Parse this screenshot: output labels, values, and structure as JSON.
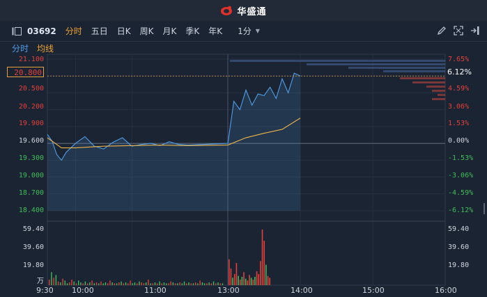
{
  "app": {
    "brand": "华盛通"
  },
  "toolbar": {
    "code": "03692",
    "tabs": [
      "分时",
      "五日",
      "日K",
      "周K",
      "月K",
      "季K",
      "年K"
    ],
    "active_tab": "分时",
    "interval": "1分"
  },
  "subtabs": {
    "tick": "分时",
    "avg": "均线"
  },
  "price_axis": {
    "left": [
      "21.100",
      "20.800",
      "20.500",
      "20.200",
      "19.900",
      "19.600",
      "19.300",
      "19.000",
      "18.700",
      "18.400"
    ],
    "right": [
      "7.65%",
      "6.12%",
      "4.59%",
      "3.06%",
      "1.53%",
      "0.00%",
      "-1.53%",
      "-3.06%",
      "-4.59%",
      "-6.12%"
    ],
    "current_price": "20.800",
    "current_pct": "6.12%"
  },
  "volume_axis": {
    "left": [
      "59.40",
      "39.60",
      "19.80",
      "万"
    ],
    "right": [
      "59.40",
      "39.60",
      "19.80"
    ]
  },
  "time_axis": [
    "9:30",
    "10:00",
    "11:00",
    "13:00",
    "14:00",
    "15:00",
    "16:00"
  ],
  "colors": {
    "background": "#1b2433",
    "price_line": "#4f9ee8",
    "avg_line": "#f0b44a",
    "up": "#e2403a",
    "down": "#3fbe58",
    "accent": "#f0a431"
  },
  "chart_data": {
    "type": "line",
    "ylim": [
      18.4,
      21.1
    ],
    "prev_close": 19.6,
    "series": [
      {
        "name": "分时",
        "x": [
          "9:30",
          "9:35",
          "9:40",
          "9:45",
          "9:50",
          "9:55",
          "10:00",
          "10:10",
          "10:20",
          "10:30",
          "10:40",
          "10:50",
          "11:00",
          "11:10",
          "11:20",
          "11:30",
          "11:40",
          "11:50",
          "12:00",
          "13:00",
          "13:05",
          "13:10",
          "13:15",
          "13:20",
          "13:25",
          "13:30",
          "13:35",
          "13:40",
          "13:45",
          "13:50",
          "13:55",
          "14:00"
        ],
        "values": [
          19.76,
          19.64,
          19.4,
          19.3,
          19.44,
          19.52,
          19.6,
          19.72,
          19.55,
          19.5,
          19.62,
          19.7,
          19.55,
          19.58,
          19.6,
          19.56,
          19.63,
          19.58,
          19.57,
          19.6,
          20.35,
          20.2,
          20.55,
          20.28,
          20.48,
          20.45,
          20.6,
          20.4,
          20.75,
          20.5,
          20.85,
          20.8
        ]
      },
      {
        "name": "均线",
        "x": [
          "9:30",
          "9:45",
          "10:00",
          "10:30",
          "11:00",
          "11:30",
          "12:00",
          "13:00",
          "13:15",
          "13:30",
          "13:45",
          "14:00"
        ],
        "values": [
          19.7,
          19.52,
          19.52,
          19.55,
          19.56,
          19.57,
          19.56,
          19.57,
          19.7,
          19.78,
          19.85,
          20.05
        ]
      }
    ],
    "volume": {
      "ylim": [
        0,
        60
      ],
      "bars_am": [
        6,
        14,
        8,
        11,
        4,
        3,
        7,
        5,
        2,
        3,
        6,
        4,
        2,
        5,
        3,
        2,
        4,
        2,
        3,
        5,
        2,
        3,
        2,
        4,
        2,
        3,
        2,
        5,
        3,
        2,
        2,
        3,
        4,
        2,
        3,
        2,
        5,
        2,
        3,
        2,
        4,
        3,
        2,
        3,
        6,
        2,
        2,
        3,
        2,
        4,
        2,
        3,
        2,
        2,
        4,
        3,
        2,
        2,
        3,
        2,
        4,
        2,
        3,
        2,
        2,
        3,
        2,
        5,
        3,
        2,
        2,
        3,
        2,
        4,
        2,
        3,
        2,
        2
      ],
      "bars_pm": [
        28,
        18,
        8,
        12,
        24,
        10,
        6,
        9,
        14,
        7,
        5,
        11,
        8,
        6,
        9,
        15,
        12,
        26,
        60,
        48,
        22,
        10,
        8
      ],
      "colors_am": [
        "r",
        "g",
        "r",
        "g",
        "r",
        "g",
        "r",
        "g",
        "g",
        "r",
        "r",
        "g",
        "r",
        "g",
        "g",
        "r",
        "g",
        "r",
        "g",
        "r",
        "g",
        "r",
        "g",
        "r",
        "g",
        "g",
        "r",
        "r",
        "g",
        "r",
        "g",
        "r",
        "g",
        "r",
        "g",
        "r",
        "r",
        "g",
        "g",
        "r",
        "g",
        "r",
        "r",
        "g",
        "r",
        "g",
        "r",
        "g",
        "r",
        "g",
        "r",
        "g",
        "g",
        "r",
        "r",
        "g",
        "r",
        "g",
        "r",
        "g",
        "g",
        "r",
        "g",
        "r",
        "g",
        "r",
        "g",
        "r",
        "g",
        "g",
        "r",
        "g",
        "r",
        "g",
        "r",
        "g",
        "r",
        "g"
      ],
      "colors_pm": [
        "r",
        "r",
        "g",
        "r",
        "r",
        "g",
        "r",
        "g",
        "r",
        "g",
        "r",
        "r",
        "g",
        "r",
        "g",
        "r",
        "r",
        "r",
        "r",
        "r",
        "g",
        "r",
        "r"
      ]
    }
  }
}
